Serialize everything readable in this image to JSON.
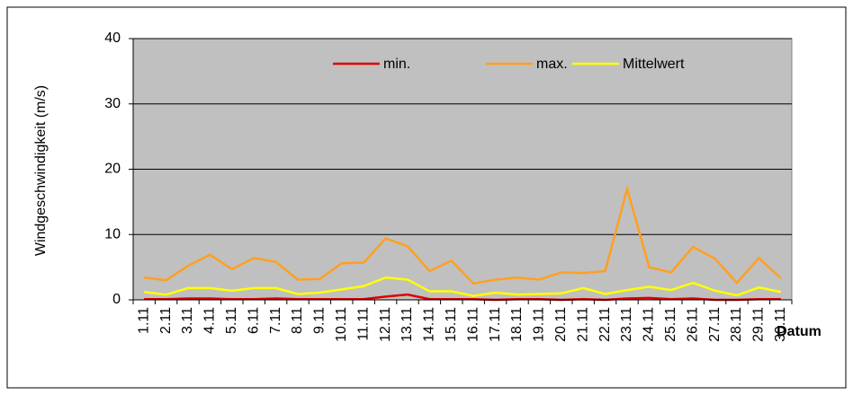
{
  "chart_data": {
    "type": "line",
    "ylabel": "Windgeschwindigkeit (m/s)",
    "xlabel": "Datum",
    "categories": [
      "1.11",
      "2.11",
      "3.11",
      "4.11",
      "5.11",
      "6.11",
      "7.11",
      "8.11",
      "9.11",
      "10.11",
      "11.11",
      "12.11",
      "13.11",
      "14.11",
      "15.11",
      "16.11",
      "17.11",
      "18.11",
      "19.11",
      "20.11",
      "21.11",
      "22.11",
      "23.11",
      "24.11",
      "25.11",
      "26.11",
      "27.11",
      "28.11",
      "29.11",
      "30.11"
    ],
    "series": [
      {
        "name": "min.",
        "color": "#e00000",
        "values": [
          0.1,
          0.1,
          0.2,
          0.2,
          0.1,
          0.1,
          0.2,
          0.1,
          0.1,
          0.1,
          0.1,
          0.5,
          0.8,
          0.1,
          0.1,
          0.1,
          0.0,
          0.1,
          0.1,
          0.0,
          0.1,
          0.0,
          0.2,
          0.3,
          0.1,
          0.2,
          0.0,
          0.0,
          0.1,
          0.1
        ]
      },
      {
        "name": "max.",
        "color": "#ffa020",
        "values": [
          3.4,
          3.0,
          5.2,
          6.9,
          4.7,
          6.4,
          5.8,
          3.1,
          3.2,
          5.6,
          5.7,
          9.4,
          8.2,
          4.4,
          6.0,
          2.5,
          3.1,
          3.4,
          3.1,
          4.2,
          4.1,
          4.4,
          17.0,
          5.0,
          4.2,
          8.1,
          6.3,
          2.6,
          6.4,
          3.3
        ]
      },
      {
        "name": "Mittelwert",
        "color": "#ffff00",
        "values": [
          1.2,
          0.8,
          1.8,
          1.8,
          1.4,
          1.8,
          1.8,
          0.9,
          1.1,
          1.6,
          2.1,
          3.4,
          3.1,
          1.3,
          1.3,
          0.6,
          1.1,
          0.8,
          0.9,
          1.0,
          1.8,
          0.9,
          1.5,
          2.0,
          1.5,
          2.6,
          1.4,
          0.7,
          1.9,
          1.2
        ]
      }
    ],
    "ylim": [
      0,
      40
    ],
    "yticks": [
      0,
      10,
      20,
      30,
      40
    ],
    "grid": true,
    "plot_background": "#c0c0c0"
  }
}
